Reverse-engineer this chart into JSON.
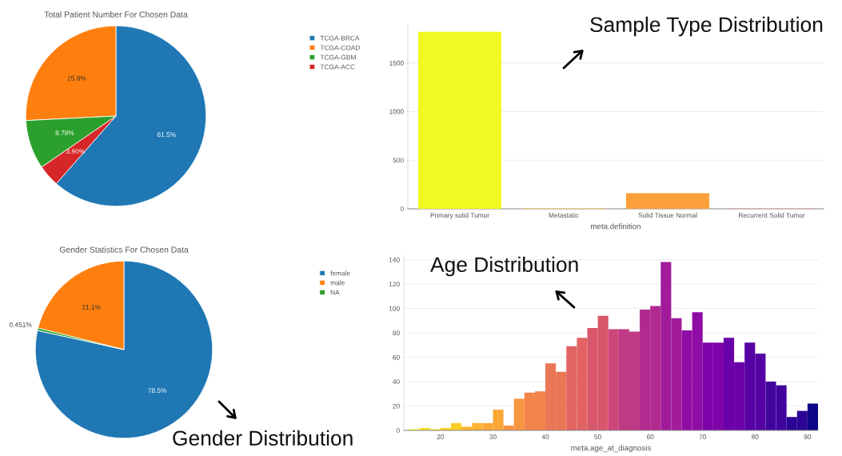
{
  "chart_data": [
    {
      "type": "pie",
      "title": "Total Patient Number For Chosen Data",
      "categories": [
        "TCGA-BRCA",
        "TCGA-COAD",
        "TCGA-GBM",
        "TCGA-ACC"
      ],
      "values": [
        61.5,
        25.8,
        8.78,
        3.9
      ],
      "value_labels": [
        "61.5%",
        "25.8%",
        "8.78%",
        "3.90%"
      ],
      "colors": [
        "#1f77b4",
        "#ff7f0e",
        "#2ca02c",
        "#d62728"
      ],
      "legend": "top right"
    },
    {
      "type": "bar",
      "categories": [
        "Primary solid Tumor",
        "Metastatic",
        "Solid Tissue Normal",
        "Recurrent Solid Tumor"
      ],
      "values": [
        1820,
        7,
        160,
        6
      ],
      "colors": [
        "#f0f921",
        "#fdd36a",
        "#fb9f3a",
        "#f4a7a0"
      ],
      "xlabel": "meta.definition",
      "ylim": [
        0,
        1900
      ],
      "yticks": [
        0,
        500,
        1000,
        1500
      ],
      "grid": "y",
      "annotations": [
        "Sample Type Distribution"
      ]
    },
    {
      "type": "pie",
      "title": "Gender Statistics For Chosen Data",
      "categories": [
        "female",
        "male",
        "NA"
      ],
      "values": [
        78.5,
        21.1,
        0.451
      ],
      "value_labels": [
        "78.5%",
        "21.1%",
        "0.451%"
      ],
      "colors": [
        "#1f77b4",
        "#ff7f0e",
        "#2ca02c"
      ],
      "legend": "top right",
      "annotations": [
        "Gender Distribution"
      ]
    },
    {
      "type": "histogram",
      "bins": [
        14,
        16,
        18,
        20,
        22,
        24,
        26,
        28,
        30,
        32,
        34,
        36,
        38,
        40,
        42,
        44,
        46,
        48,
        50,
        52,
        54,
        56,
        58,
        60,
        62,
        64,
        66,
        68,
        70,
        72,
        74,
        76,
        78,
        80,
        82,
        84,
        86,
        88,
        90,
        92
      ],
      "values": [
        1,
        2,
        1,
        2,
        6,
        3,
        6,
        6,
        17,
        4,
        26,
        31,
        32,
        55,
        48,
        69,
        76,
        84,
        94,
        83,
        83,
        81,
        99,
        102,
        138,
        92,
        82,
        97,
        72,
        72,
        76,
        56,
        72,
        63,
        40,
        37,
        11,
        16,
        22
      ],
      "colors": [
        "#f0f921",
        "#f8df25",
        "#f8df25",
        "#fcce25",
        "#fcce25",
        "#fdb42f",
        "#fdb42f",
        "#fca636",
        "#fca636",
        "#f89540",
        "#f89540",
        "#f2844b",
        "#f2844b",
        "#eb7655",
        "#eb7655",
        "#e16462",
        "#e16462",
        "#d8576b",
        "#d8576b",
        "#cc4778",
        "#bf3984",
        "#bf3984",
        "#b12a90",
        "#b12a90",
        "#a11b9b",
        "#a11b9b",
        "#8f0da4",
        "#8f0da4",
        "#7e03a8",
        "#7e03a8",
        "#6a00a8",
        "#6a00a8",
        "#5601a4",
        "#5601a4",
        "#41049d",
        "#41049d",
        "#2c0594",
        "#2c0594",
        "#0d0887"
      ],
      "xlabel": "meta.age_at_diagnosis",
      "xlim": [
        13,
        92
      ],
      "xticks": [
        20,
        30,
        40,
        50,
        60,
        70,
        80,
        90
      ],
      "ylim": [
        0,
        143
      ],
      "yticks": [
        0,
        20,
        40,
        60,
        80,
        100,
        120,
        140
      ],
      "grid": "y",
      "annotations": [
        "Age Distribution"
      ]
    }
  ]
}
